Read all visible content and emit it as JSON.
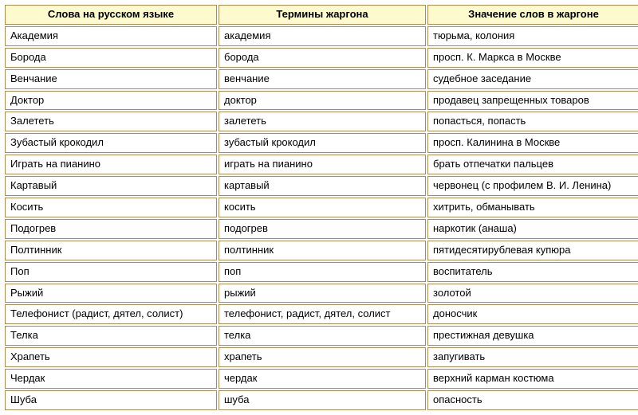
{
  "table": {
    "header_bg": "#fdfacd",
    "border_color": "#b08b4f",
    "cell_bg": "#ffffff",
    "font_size": 13,
    "columns": [
      "Слова на русском языке",
      "Термины жаргона",
      "Значение слов в жаргоне"
    ],
    "rows": [
      [
        "Академия",
        "академия",
        "тюрьма, колония"
      ],
      [
        "Борода",
        "борода",
        "просп. К. Маркса в Москве"
      ],
      [
        "Венчание",
        "венчание",
        "судебное заседание"
      ],
      [
        "Доктор",
        "доктор",
        "продавец запрещенных товаров"
      ],
      [
        "Залететь",
        "залететь",
        "попасться, попасть"
      ],
      [
        "Зубастый крокодил",
        "зубастый крокодил",
        "просп. Калинина в Москве"
      ],
      [
        "Играть на пианино",
        "играть на пианино",
        "брать отпечатки пальцев"
      ],
      [
        "Картавый",
        "картавый",
        "червонец (с профилем В. И. Ленина)"
      ],
      [
        "Косить",
        "косить",
        "хитрить, обманывать"
      ],
      [
        "Подогрев",
        "подогрев",
        "наркотик (анаша)"
      ],
      [
        "Полтинник",
        "полтинник",
        "пятидесятирублевая купюра"
      ],
      [
        "Поп",
        "поп",
        "воспитатель"
      ],
      [
        "Рыжий",
        "рыжий",
        "золотой"
      ],
      [
        "Телефонист (радист, дятел, солист)",
        "телефонист, радист, дятел, солист",
        "доносчик"
      ],
      [
        "Телка",
        "телка",
        "престижная девушка"
      ],
      [
        "Храпеть",
        "храпеть",
        "запугивать"
      ],
      [
        "Чердак",
        "чердак",
        "верхний карман костюма"
      ],
      [
        "Шуба",
        "шуба",
        "опасность"
      ]
    ]
  }
}
